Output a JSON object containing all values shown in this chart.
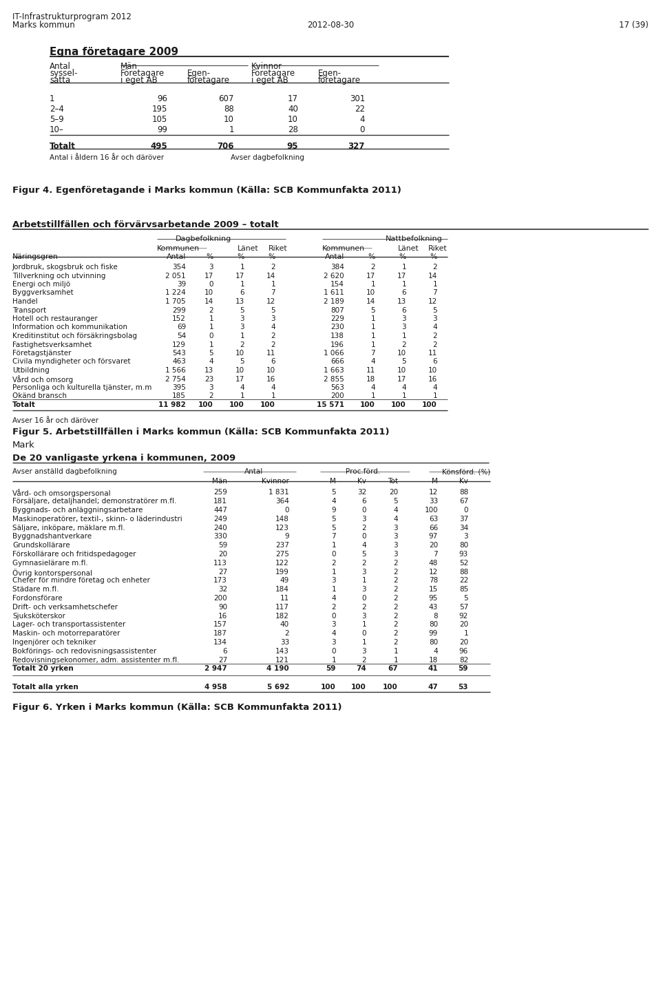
{
  "page_header_left1": "IT-Infrastrukturprogram 2012",
  "page_header_left2": "Marks kommun",
  "page_header_center": "2012-08-30",
  "page_header_right": "17 (39)",
  "table1_title": "Egna företagare 2009",
  "table1_data": [
    [
      "1",
      "96",
      "607",
      "17",
      "301"
    ],
    [
      "2–4",
      "195",
      "88",
      "40",
      "22"
    ],
    [
      "5–9",
      "105",
      "10",
      "10",
      "4"
    ],
    [
      "10–",
      "99",
      "1",
      "28",
      "0"
    ]
  ],
  "table1_total": [
    "Totalt",
    "495",
    "706",
    "95",
    "327"
  ],
  "table1_footnote1": "Antal i åldern 16 år och däröver",
  "table1_footnote2": "Avser dagbefolkning",
  "fig4_caption": "Figur 4. Egenföretagande i Marks kommun (Källa: SCB Kommunfakta 2011)",
  "table2_title": "Arbetstillfällen och förvärvsarbetande 2009 – totalt",
  "table2_data": [
    [
      "Jordbruk, skogsbruk och fiske",
      "354",
      "3",
      "1",
      "2",
      "384",
      "2",
      "1",
      "2"
    ],
    [
      "Tillverkning och utvinning",
      "2 051",
      "17",
      "17",
      "14",
      "2 620",
      "17",
      "17",
      "14"
    ],
    [
      "Energi och miljö",
      "39",
      "0",
      "1",
      "1",
      "154",
      "1",
      "1",
      "1"
    ],
    [
      "Byggverksamhet",
      "1 224",
      "10",
      "6",
      "7",
      "1 611",
      "10",
      "6",
      "7"
    ],
    [
      "Handel",
      "1 705",
      "14",
      "13",
      "12",
      "2 189",
      "14",
      "13",
      "12"
    ],
    [
      "Transport",
      "299",
      "2",
      "5",
      "5",
      "807",
      "5",
      "6",
      "5"
    ],
    [
      "Hotell och restauranger",
      "152",
      "1",
      "3",
      "3",
      "229",
      "1",
      "3",
      "3"
    ],
    [
      "Information och kommunikation",
      "69",
      "1",
      "3",
      "4",
      "230",
      "1",
      "3",
      "4"
    ],
    [
      "Kreditinstitut och försäkringsbolag",
      "54",
      "0",
      "1",
      "2",
      "138",
      "1",
      "1",
      "2"
    ],
    [
      "Fastighetsverksamhet",
      "129",
      "1",
      "2",
      "2",
      "196",
      "1",
      "2",
      "2"
    ],
    [
      "Företagstjänster",
      "543",
      "5",
      "10",
      "11",
      "1 066",
      "7",
      "10",
      "11"
    ],
    [
      "Civila myndigheter och försvaret",
      "463",
      "4",
      "5",
      "6",
      "666",
      "4",
      "5",
      "6"
    ],
    [
      "Utbildning",
      "1 566",
      "13",
      "10",
      "10",
      "1 663",
      "11",
      "10",
      "10"
    ],
    [
      "Vård och omsorg",
      "2 754",
      "23",
      "17",
      "16",
      "2 855",
      "18",
      "17",
      "16"
    ],
    [
      "Personliga och kulturella tjänster, m.m",
      "395",
      "3",
      "4",
      "4",
      "563",
      "4",
      "4",
      "4"
    ],
    [
      "Okänd bransch",
      "185",
      "2",
      "1",
      "1",
      "200",
      "1",
      "1",
      "1"
    ],
    [
      "Totalt",
      "11 982",
      "100",
      "100",
      "100",
      "15 571",
      "100",
      "100",
      "100"
    ]
  ],
  "table2_footnote": "Avser 16 år och däröver",
  "fig5_caption": "Figur 5. Arbetstillfällen i Marks kommun (Källa: SCB Kommunfakta 2011)",
  "mark_label": "Mark",
  "table3_title": "De 20 vanligaste yrkena i kommunen, 2009",
  "table3_data": [
    [
      "Vård- och omsorgspersonal",
      "259",
      "1 831",
      "5",
      "32",
      "20",
      "12",
      "88"
    ],
    [
      "Försäljare, detaljhandel; demonstratörer m.fl.",
      "181",
      "364",
      "4",
      "6",
      "5",
      "33",
      "67"
    ],
    [
      "Byggnads- och anläggningsarbetare",
      "447",
      "0",
      "9",
      "0",
      "4",
      "100",
      "0"
    ],
    [
      "Maskinoperatörer, textil-, skinn- o läderindustri",
      "249",
      "148",
      "5",
      "3",
      "4",
      "63",
      "37"
    ],
    [
      "Säljare, inköpare, mäklare m.fl.",
      "240",
      "123",
      "5",
      "2",
      "3",
      "66",
      "34"
    ],
    [
      "Byggnadshantverkare",
      "330",
      "9",
      "7",
      "0",
      "3",
      "97",
      "3"
    ],
    [
      "Grundskollärare",
      "59",
      "237",
      "1",
      "4",
      "3",
      "20",
      "80"
    ],
    [
      "Förskollärare och fritidspedagoger",
      "20",
      "275",
      "0",
      "5",
      "3",
      "7",
      "93"
    ],
    [
      "Gymnasielärare m.fl.",
      "113",
      "122",
      "2",
      "2",
      "2",
      "48",
      "52"
    ],
    [
      "Övrig kontorspersonal",
      "27",
      "199",
      "1",
      "3",
      "2",
      "12",
      "88"
    ],
    [
      "Chefer för mindre företag och enheter",
      "173",
      "49",
      "3",
      "1",
      "2",
      "78",
      "22"
    ],
    [
      "Städare m.fl.",
      "32",
      "184",
      "1",
      "3",
      "2",
      "15",
      "85"
    ],
    [
      "Fordonsförare",
      "200",
      "11",
      "4",
      "0",
      "2",
      "95",
      "5"
    ],
    [
      "Drift- och verksamhetschefer",
      "90",
      "117",
      "2",
      "2",
      "2",
      "43",
      "57"
    ],
    [
      "Sjuksköterskor",
      "16",
      "182",
      "0",
      "3",
      "2",
      "8",
      "92"
    ],
    [
      "Lager- och transportassistenter",
      "157",
      "40",
      "3",
      "1",
      "2",
      "80",
      "20"
    ],
    [
      "Maskin- och motorreparatörer",
      "187",
      "2",
      "4",
      "0",
      "2",
      "99",
      "1"
    ],
    [
      "Ingenjörer och tekniker",
      "134",
      "33",
      "3",
      "1",
      "2",
      "80",
      "20"
    ],
    [
      "Bokförings- och redovisningsassistenter",
      "6",
      "143",
      "0",
      "3",
      "1",
      "4",
      "96"
    ],
    [
      "Redovisningsekonomer, adm. assistenter m.fl.",
      "27",
      "121",
      "1",
      "2",
      "1",
      "18",
      "82"
    ],
    [
      "Totalt 20 yrken",
      "2 947",
      "4 190",
      "59",
      "74",
      "67",
      "41",
      "59"
    ]
  ],
  "table3_total": [
    "Totalt alla yrken",
    "4 958",
    "5 692",
    "100",
    "100",
    "100",
    "47",
    "53"
  ],
  "fig6_caption": "Figur 6. Yrken i Marks kommun (Källa: SCB Kommunfakta 2011)"
}
